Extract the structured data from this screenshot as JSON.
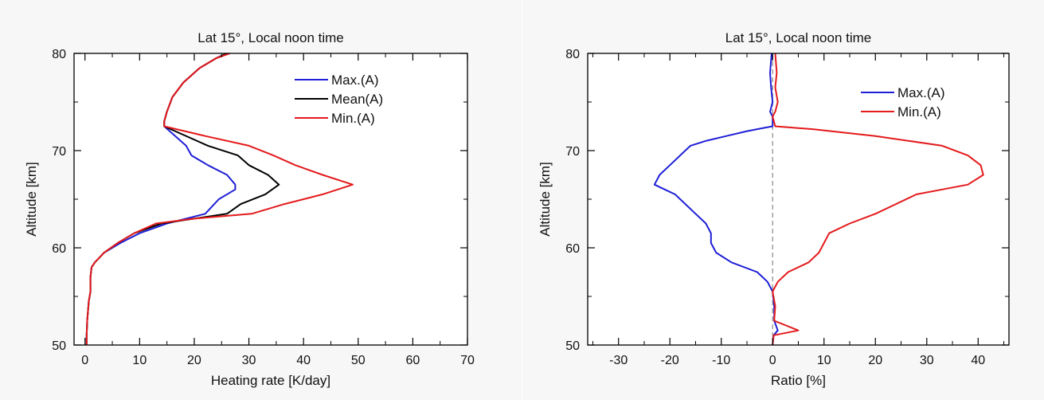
{
  "chart_data": [
    {
      "type": "line",
      "title": "Lat 15°, Local noon time",
      "xlabel": "Heating rate [K/day]",
      "ylabel": "Altitude [km]",
      "xlim": [
        -2,
        70
      ],
      "ylim": [
        50,
        80
      ],
      "xticks": [
        0,
        10,
        20,
        30,
        40,
        50,
        60,
        70
      ],
      "yticks": [
        50,
        60,
        70,
        80
      ],
      "legend_position": "top-right",
      "series": [
        {
          "name": "Max.(A)",
          "color": "#1f1fd6",
          "x": [
            0.3,
            0.3,
            0.4,
            0.7,
            1.0,
            1.0,
            1.2,
            1.8,
            3.5,
            6.5,
            10.0,
            15.0,
            22.0,
            24.5,
            27.5,
            27.5,
            26.0,
            22.5,
            19.5,
            18.5,
            14.5,
            14.5,
            15.0,
            16.0,
            18.0,
            21.0,
            24.0,
            26.0
          ],
          "y": [
            50.0,
            51.0,
            52.5,
            54.5,
            55.5,
            57.0,
            58.0,
            58.5,
            59.5,
            60.5,
            61.5,
            62.5,
            63.5,
            65.0,
            66.0,
            66.5,
            67.5,
            68.5,
            69.5,
            70.5,
            72.5,
            73.0,
            74.0,
            75.5,
            77.0,
            78.5,
            79.5,
            80.0
          ]
        },
        {
          "name": "Mean(A)",
          "color": "#000000",
          "x": [
            0.3,
            0.3,
            0.4,
            0.7,
            1.0,
            1.0,
            1.2,
            1.8,
            3.5,
            6.0,
            9.0,
            14.0,
            20.0,
            26.0,
            28.5,
            33.0,
            35.5,
            33.5,
            30.0,
            28.0,
            22.5,
            14.5,
            14.5,
            15.0,
            16.0,
            18.0,
            21.0,
            24.0,
            26.0
          ],
          "y": [
            50.0,
            51.0,
            52.5,
            54.5,
            55.5,
            57.0,
            58.0,
            58.5,
            59.5,
            60.5,
            61.5,
            62.5,
            63.0,
            63.5,
            64.5,
            65.5,
            66.5,
            67.5,
            68.5,
            69.5,
            70.5,
            72.5,
            73.0,
            74.0,
            75.5,
            77.0,
            78.5,
            79.5,
            80.0
          ]
        },
        {
          "name": "Min.(A)",
          "color": "#e41a1c",
          "x": [
            0.3,
            0.3,
            0.4,
            0.7,
            1.0,
            1.0,
            1.2,
            1.8,
            3.5,
            6.0,
            9.0,
            13.0,
            20.0,
            30.5,
            36.5,
            43.5,
            49.0,
            43.5,
            38.5,
            34.5,
            30.0,
            22.0,
            14.5,
            14.5,
            15.0,
            16.0,
            18.0,
            21.0,
            24.0,
            26.5
          ],
          "y": [
            50.0,
            51.0,
            52.5,
            54.5,
            55.5,
            57.0,
            58.0,
            58.5,
            59.5,
            60.5,
            61.5,
            62.5,
            63.0,
            63.5,
            64.5,
            65.5,
            66.5,
            67.5,
            68.5,
            69.5,
            70.5,
            71.5,
            72.5,
            73.0,
            74.0,
            75.5,
            77.0,
            78.5,
            79.5,
            80.0
          ]
        }
      ]
    },
    {
      "type": "line",
      "title": "Lat 15°, Local noon time",
      "xlabel": "Ratio [%]",
      "ylabel": "Altitude [km]",
      "xlim": [
        -36,
        46
      ],
      "ylim": [
        50,
        80
      ],
      "xticks": [
        -30,
        -20,
        -10,
        0,
        10,
        20,
        30,
        40
      ],
      "yticks": [
        50,
        60,
        70,
        80
      ],
      "legend_position": "top-right",
      "reference_line": {
        "x": 0,
        "style": "dashed",
        "color": "#999999"
      },
      "series": [
        {
          "name": "Max.(A)",
          "color": "#1f1fd6",
          "x": [
            0.0,
            0.2,
            1.0,
            0.3,
            0.3,
            0.0,
            -1.0,
            -3.0,
            -8.0,
            -11.0,
            -12.0,
            -12.0,
            -13.0,
            -15.0,
            -17.0,
            -19.0,
            -21.0,
            -23.0,
            -22.0,
            -20.0,
            -16.0,
            -13.0,
            -9.0,
            -5.0,
            -2.0,
            0.0,
            0.0,
            -0.5,
            0.0,
            -0.3,
            -0.5,
            -0.2
          ],
          "y": [
            50.0,
            51.0,
            51.5,
            52.5,
            54.0,
            55.5,
            56.5,
            57.5,
            58.5,
            59.5,
            60.5,
            61.5,
            62.5,
            63.5,
            64.5,
            65.5,
            66.0,
            66.5,
            67.5,
            68.5,
            70.5,
            71.0,
            71.5,
            72.0,
            72.3,
            72.5,
            73.5,
            74.0,
            75.0,
            76.5,
            78.0,
            80.0
          ]
        },
        {
          "name": "Min.(A)",
          "color": "#e41a1c",
          "x": [
            0.0,
            0.2,
            5.0,
            0.3,
            0.5,
            0.0,
            1.0,
            3.0,
            7.0,
            9.0,
            10.0,
            11.0,
            15.0,
            20.0,
            24.0,
            28.0,
            33.0,
            38.0,
            41.0,
            40.5,
            38.0,
            33.0,
            20.0,
            8.0,
            0.5,
            0.0,
            0.5,
            1.0,
            0.5,
            0.8,
            0.5
          ],
          "y": [
            50.0,
            51.0,
            51.5,
            52.5,
            54.0,
            55.5,
            56.5,
            57.5,
            58.5,
            59.5,
            60.5,
            61.5,
            62.5,
            63.5,
            64.5,
            65.5,
            66.0,
            66.5,
            67.5,
            68.5,
            69.5,
            70.5,
            71.5,
            72.2,
            72.5,
            73.5,
            74.0,
            75.0,
            76.5,
            78.0,
            80.0
          ]
        }
      ]
    }
  ]
}
